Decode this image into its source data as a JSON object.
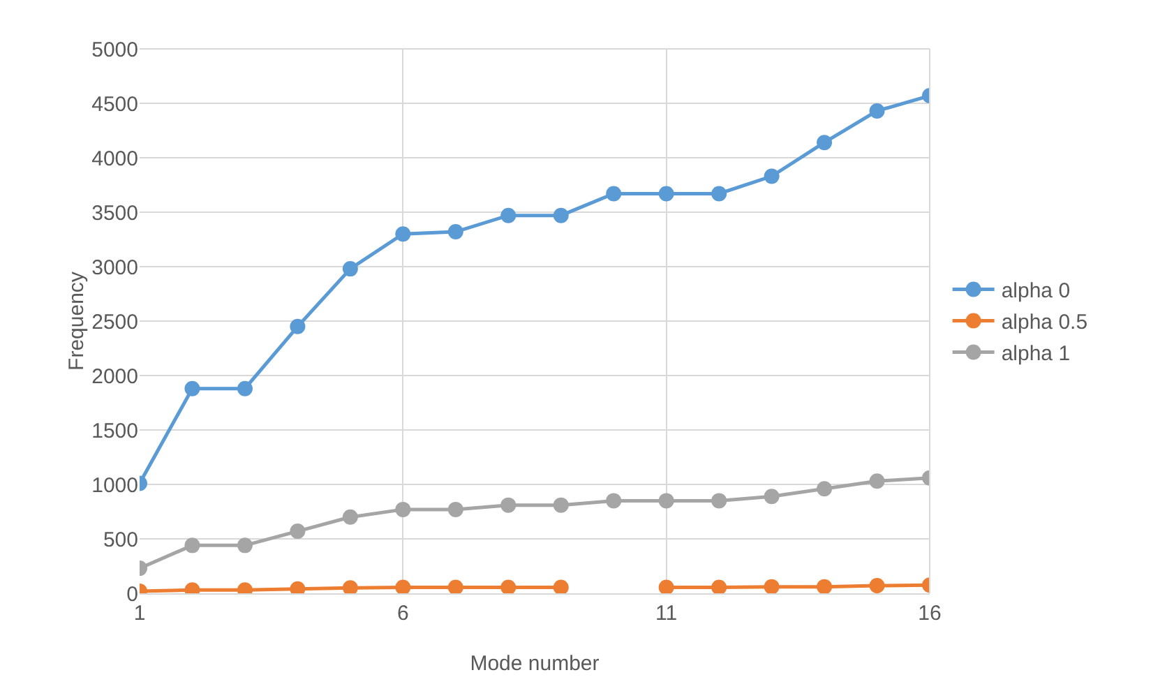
{
  "chart_data": {
    "type": "line",
    "xlabel": "Mode number",
    "ylabel": "Frequency",
    "x": [
      1,
      2,
      3,
      4,
      5,
      6,
      7,
      8,
      9,
      10,
      11,
      12,
      13,
      14,
      15,
      16
    ],
    "xlim": [
      1,
      16
    ],
    "xticks": [
      1,
      6,
      11,
      16
    ],
    "ylim": [
      0,
      5000
    ],
    "yticks": [
      0,
      500,
      1000,
      1500,
      2000,
      2500,
      3000,
      3500,
      4000,
      4500,
      5000
    ],
    "grid": true,
    "legend": "right",
    "marker": "circle",
    "line_style": "solid",
    "series": [
      {
        "name": "alpha 0",
        "color": "#5b9bd5",
        "values": [
          1010,
          1880,
          1880,
          2450,
          2980,
          3300,
          3320,
          3470,
          3470,
          3670,
          3670,
          3670,
          3830,
          4140,
          4430,
          4570
        ]
      },
      {
        "name": "alpha 0.5",
        "color": "#ed7d31",
        "values": [
          20,
          30,
          30,
          40,
          50,
          55,
          55,
          55,
          55,
          null,
          55,
          55,
          60,
          60,
          70,
          75
        ]
      },
      {
        "name": "alpha 1",
        "color": "#a5a5a5",
        "values": [
          230,
          440,
          440,
          570,
          700,
          770,
          770,
          810,
          810,
          850,
          850,
          850,
          890,
          960,
          1030,
          1060
        ]
      }
    ]
  }
}
